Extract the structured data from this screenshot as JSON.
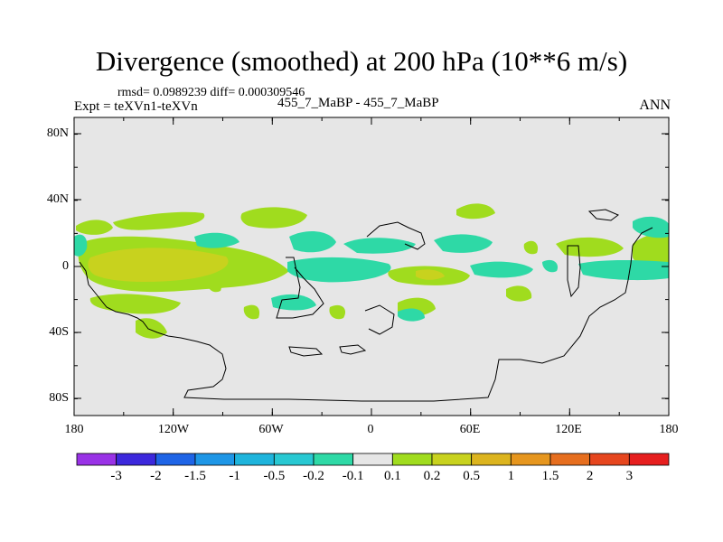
{
  "title": "Divergence (smoothed) at 200 hPa (10**6 m/s)",
  "stats": "rmsd= 0.0989239 diff= 0.000309546",
  "experiment": "Expt = teXVn1-teXVn",
  "cases": "455_7_MaBP - 455_7_MaBP",
  "season": "ANN",
  "lat_ticks": [
    "80N",
    "40N",
    "0",
    "40S",
    "80S"
  ],
  "lon_ticks": [
    "180",
    "120W",
    "60W",
    "0",
    "60E",
    "120E",
    "180"
  ],
  "colorbar": {
    "labels": [
      "-3",
      "-2",
      "-1.5",
      "-1",
      "-0.5",
      "-0.2",
      "-0.1",
      "0.1",
      "0.2",
      "0.5",
      "1",
      "1.5",
      "2",
      "3"
    ],
    "colors": [
      "#9932e6",
      "#3c28dc",
      "#1e64e6",
      "#1e96e6",
      "#1eb4dc",
      "#28c8d2",
      "#2ed9a6",
      "#e6e6e6",
      "#a0dc1e",
      "#c8d21e",
      "#dcb41e",
      "#e6961e",
      "#e66e1e",
      "#e6461e",
      "#e61e1e"
    ]
  },
  "map_background": "#e6e6e6"
}
